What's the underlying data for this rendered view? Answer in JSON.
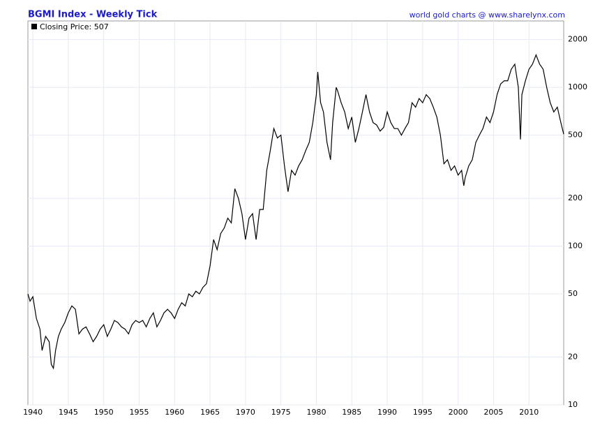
{
  "chart_data": {
    "type": "line",
    "title": "BGMI Index - Weekly Tick",
    "source": "world gold charts @ www.sharelynx.com",
    "log_y": true,
    "grid": true,
    "xlim": [
      1939.3,
      2014.9
    ],
    "xticks": [
      1940,
      1945,
      1950,
      1955,
      1960,
      1965,
      1970,
      1975,
      1980,
      1985,
      1990,
      1995,
      2000,
      2005,
      2010
    ],
    "ylim": [
      10,
      2620
    ],
    "yticks": [
      10,
      20,
      50,
      100,
      200,
      500,
      1000,
      2000
    ],
    "legend": "top-left",
    "x": [
      1939.3,
      1939.6,
      1940,
      1940.5,
      1941,
      1941.3,
      1941.8,
      1942.3,
      1942.6,
      1942.9,
      1943.2,
      1943.6,
      1944,
      1944.5,
      1945,
      1945.5,
      1946,
      1946.5,
      1947,
      1947.5,
      1948,
      1948.5,
      1949,
      1949.5,
      1950,
      1950.5,
      1951,
      1951.5,
      1952,
      1952.5,
      1953,
      1953.5,
      1954,
      1954.5,
      1955,
      1955.5,
      1956,
      1956.5,
      1957,
      1957.5,
      1958,
      1958.5,
      1959,
      1959.5,
      1960,
      1960.5,
      1961,
      1961.5,
      1962,
      1962.5,
      1963,
      1963.5,
      1964,
      1964.5,
      1965,
      1965.5,
      1966,
      1966.5,
      1967,
      1967.5,
      1968,
      1968.5,
      1969,
      1969.5,
      1970,
      1970.5,
      1971,
      1971.5,
      1972,
      1972.5,
      1973,
      1973.5,
      1974,
      1974.5,
      1975,
      1975.5,
      1976,
      1976.5,
      1977,
      1977.5,
      1978,
      1978.5,
      1979,
      1979.5,
      1980,
      1980.2,
      1980.6,
      1981,
      1981.5,
      1982,
      1982.3,
      1982.8,
      1983,
      1983.5,
      1984,
      1984.5,
      1985,
      1985.5,
      1986,
      1986.5,
      1987,
      1987.5,
      1988,
      1988.5,
      1989,
      1989.5,
      1990,
      1990.5,
      1991,
      1991.5,
      1992,
      1992.5,
      1993,
      1993.5,
      1994,
      1994.5,
      1995,
      1995.5,
      1996,
      1996.5,
      1997,
      1997.5,
      1998,
      1998.5,
      1999,
      1999.5,
      2000,
      2000.5,
      2000.8,
      2001,
      2001.5,
      2002,
      2002.5,
      2003,
      2003.5,
      2004,
      2004.5,
      2005,
      2005.5,
      2006,
      2006.5,
      2007,
      2007.5,
      2008,
      2008.5,
      2008.8,
      2009,
      2009.5,
      2010,
      2010.5,
      2011,
      2011.5,
      2012,
      2012.5,
      2013,
      2013.5,
      2014,
      2014.5,
      2014.9
    ],
    "series": [
      {
        "name": "Closing Price: 507",
        "color": "#000000",
        "values": [
          50,
          45,
          48,
          35,
          30,
          22,
          27,
          25,
          18,
          17,
          22,
          27,
          30,
          33,
          38,
          42,
          40,
          28,
          30,
          31,
          28,
          25,
          27,
          30,
          32,
          27,
          30,
          34,
          33,
          31,
          30,
          28,
          32,
          34,
          33,
          34,
          31,
          35,
          38,
          31,
          34,
          38,
          40,
          38,
          35,
          40,
          44,
          42,
          50,
          48,
          52,
          50,
          55,
          58,
          75,
          110,
          95,
          120,
          130,
          150,
          140,
          230,
          200,
          160,
          110,
          150,
          160,
          110,
          170,
          170,
          300,
          400,
          550,
          480,
          500,
          320,
          220,
          300,
          280,
          320,
          350,
          400,
          450,
          600,
          900,
          1250,
          800,
          700,
          450,
          350,
          600,
          1000,
          950,
          800,
          700,
          550,
          650,
          450,
          550,
          700,
          900,
          700,
          600,
          580,
          530,
          560,
          700,
          600,
          550,
          550,
          500,
          550,
          600,
          800,
          750,
          850,
          800,
          900,
          850,
          750,
          650,
          500,
          330,
          350,
          300,
          320,
          280,
          300,
          240,
          270,
          320,
          350,
          450,
          500,
          550,
          650,
          600,
          700,
          900,
          1050,
          1100,
          1100,
          1300,
          1400,
          1000,
          470,
          900,
          1100,
          1300,
          1400,
          1600,
          1400,
          1300,
          1000,
          800,
          700,
          750,
          600,
          507
        ]
      }
    ]
  }
}
